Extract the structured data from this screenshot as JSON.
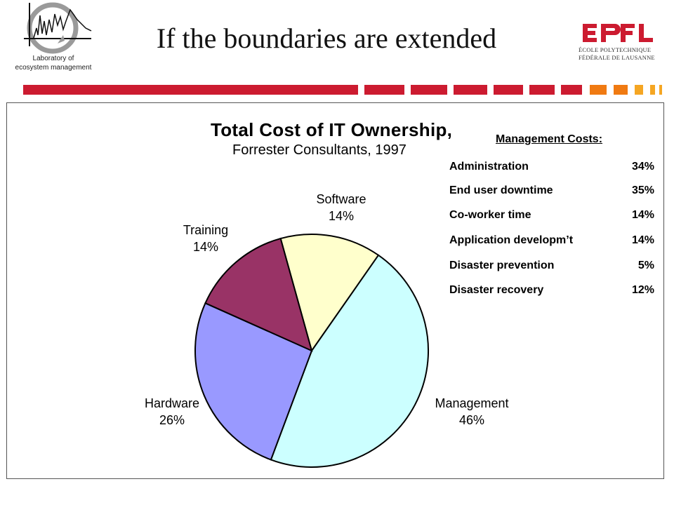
{
  "header": {
    "title": "If the boundaries are extended",
    "lab_line1": "Laboratory of",
    "lab_line2": "ecosystem management",
    "epfl_line1": "ÉCOLE POLYTECHNIQUE",
    "epfl_line2": "FÉDÉRALE DE LAUSANNE",
    "accent_red": "#cc1b30",
    "accent_orange": "#f07a12"
  },
  "chart_data": {
    "type": "pie",
    "title": "Total Cost of IT Ownership,",
    "subtitle": "Forrester Consultants, 1997",
    "slices": [
      {
        "label": "Software",
        "value": 14,
        "pct_text": "14%",
        "color": "#ffffcc"
      },
      {
        "label": "Management",
        "value": 46,
        "pct_text": "46%",
        "color": "#ccffff"
      },
      {
        "label": "Hardware",
        "value": 26,
        "pct_text": "26%",
        "color": "#9999ff"
      },
      {
        "label": "Training",
        "value": 14,
        "pct_text": "14%",
        "color": "#993366"
      }
    ]
  },
  "management_costs": {
    "title": "Management Costs:",
    "items": [
      {
        "name": "Administration",
        "pct": "34%"
      },
      {
        "name": "End user downtime",
        "pct": "35%"
      },
      {
        "name": "Co-worker time",
        "pct": "14%"
      },
      {
        "name": "Application developm’t",
        "pct": "14%"
      },
      {
        "name": "Disaster prevention",
        "pct": "5%"
      },
      {
        "name": "Disaster recovery",
        "pct": "12%"
      }
    ]
  }
}
